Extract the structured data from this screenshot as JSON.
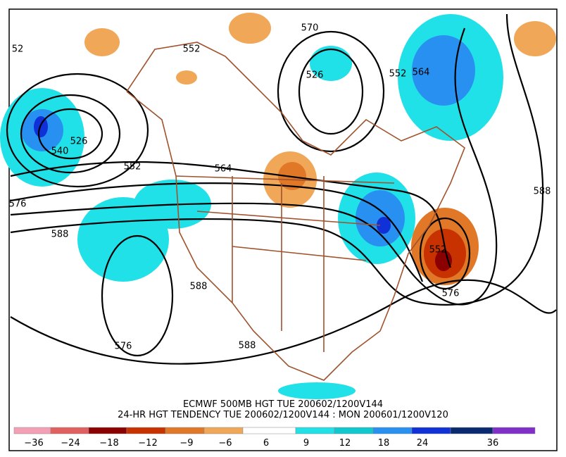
{
  "header": {
    "line1": "ECMWF 500MB HGT TUE 200602/1200V144",
    "line2": "24-HR HGT TENDENCY TUE 200602/1200V144 : MON 200601/1200V120"
  },
  "colorbar": {
    "colors": [
      "#f4a0b4",
      "#e06060",
      "#8b0000",
      "#c83200",
      "#e07828",
      "#f0a858",
      "#ffffff",
      "#20e0e8",
      "#10c8d0",
      "#2890f0",
      "#1030d8",
      "#0a2a70",
      "#8030c8"
    ],
    "labels": [
      "−36",
      "−24",
      "−18",
      "−12",
      "−9",
      "−6",
      "6",
      "9",
      "12",
      "18",
      "24",
      "36"
    ]
  },
  "contour_labels": [
    "52",
    "552",
    "570",
    "526",
    "552",
    "564",
    "526",
    "540",
    "552",
    "564",
    "588",
    "576",
    "588",
    "552",
    "576",
    "588",
    "576",
    "588"
  ]
}
